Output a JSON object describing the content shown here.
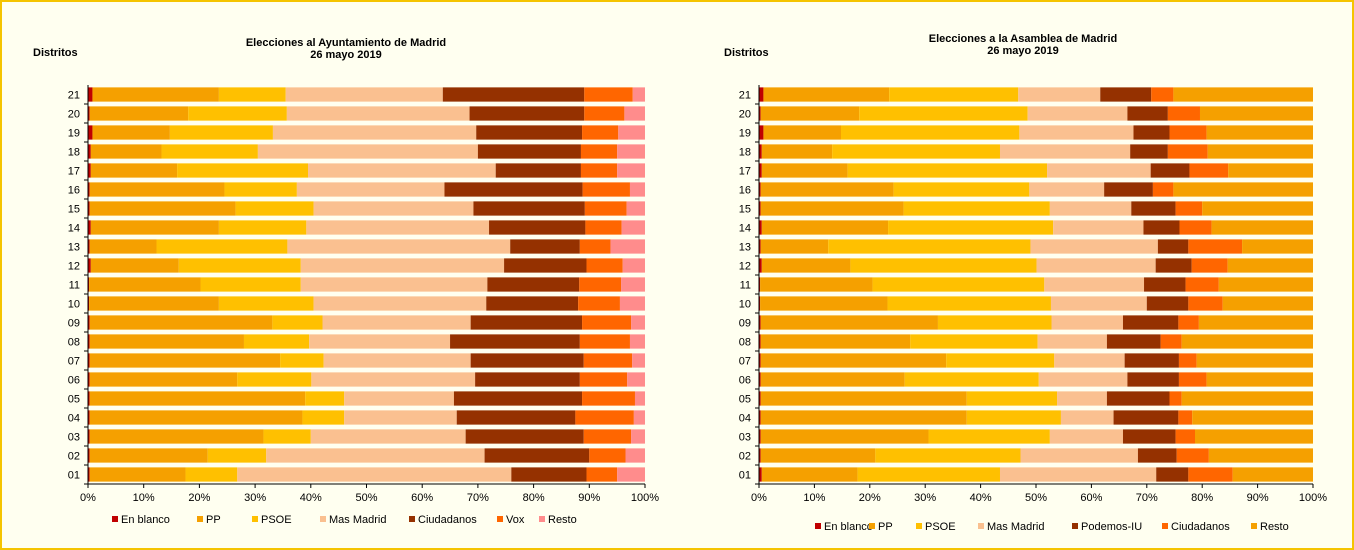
{
  "chart_data": [
    {
      "type": "bar",
      "stacked": true,
      "orientation": "horizontal",
      "normalized": true,
      "title": "Elecciones al Ayuntamiento de Madrid",
      "subtitle": "26 mayo 2019",
      "ylabel": "Distritos",
      "xlim": [
        0,
        100
      ],
      "x_ticks": [
        "0%",
        "10%",
        "20%",
        "30%",
        "40%",
        "50%",
        "60%",
        "70%",
        "80%",
        "90%",
        "100%"
      ],
      "legend_position": "bottom",
      "categories": [
        "01",
        "02",
        "03",
        "04",
        "05",
        "06",
        "07",
        "08",
        "09",
        "10",
        "11",
        "12",
        "13",
        "14",
        "15",
        "16",
        "17",
        "18",
        "19",
        "20",
        "21"
      ],
      "series": [
        {
          "name": "En blanco",
          "color": "#c00000",
          "values": [
            0.3,
            0.3,
            0.3,
            0.3,
            0.3,
            0.3,
            0.3,
            0.3,
            0.3,
            0.2,
            0.2,
            0.5,
            0.3,
            0.5,
            0.3,
            0.3,
            0.5,
            0.5,
            0.8,
            0.3,
            0.8
          ]
        },
        {
          "name": "PP",
          "color": "#f5a000",
          "values": [
            17.2,
            21.2,
            31.2,
            38.2,
            38.7,
            26.5,
            34.2,
            27.7,
            32.8,
            23.3,
            20.0,
            15.8,
            12.0,
            23.0,
            26.2,
            24.2,
            15.5,
            12.7,
            13.9,
            17.7,
            22.7
          ]
        },
        {
          "name": "PSOE",
          "color": "#ffc000",
          "values": [
            9.3,
            10.5,
            8.5,
            7.5,
            7.0,
            13.3,
            7.8,
            11.7,
            9.0,
            17.0,
            18.0,
            21.9,
            23.5,
            15.7,
            14.0,
            13.0,
            23.5,
            17.3,
            18.5,
            17.7,
            12.0
          ]
        },
        {
          "name": "Mas Madrid",
          "color": "#fac090",
          "values": [
            49.2,
            39.2,
            27.8,
            20.2,
            19.7,
            29.4,
            26.4,
            25.3,
            26.6,
            31.0,
            33.5,
            36.5,
            40.0,
            32.8,
            28.7,
            26.5,
            33.7,
            39.5,
            36.5,
            32.8,
            28.2
          ]
        },
        {
          "name": "Ciudadanos",
          "color": "#953100",
          "values": [
            13.5,
            18.8,
            21.2,
            21.3,
            23.0,
            18.8,
            20.3,
            23.3,
            20.0,
            16.5,
            16.5,
            14.8,
            12.5,
            17.3,
            20.0,
            24.8,
            15.3,
            18.5,
            19.0,
            20.6,
            25.4
          ]
        },
        {
          "name": "Vox",
          "color": "#ff6600",
          "values": [
            5.5,
            6.5,
            8.5,
            10.5,
            9.5,
            8.5,
            8.7,
            9.0,
            8.8,
            7.5,
            7.5,
            6.5,
            5.5,
            6.5,
            7.5,
            8.5,
            6.5,
            6.5,
            6.5,
            7.2,
            8.7
          ]
        },
        {
          "name": "Resto",
          "color": "#ff8c8c",
          "values": [
            5.0,
            3.5,
            2.5,
            2.0,
            1.8,
            3.2,
            2.3,
            2.7,
            2.5,
            4.5,
            4.3,
            4.0,
            6.2,
            4.2,
            3.3,
            2.7,
            5.0,
            5.0,
            4.8,
            3.7,
            2.2
          ]
        }
      ]
    },
    {
      "type": "bar",
      "stacked": true,
      "orientation": "horizontal",
      "normalized": true,
      "title": "Elecciones a la Asamblea de Madrid",
      "subtitle": "26 mayo 2019",
      "ylabel": "Distritos",
      "xlim": [
        0,
        100
      ],
      "x_ticks": [
        "0%",
        "10%",
        "20%",
        "30%",
        "40%",
        "50%",
        "60%",
        "70%",
        "80%",
        "90%",
        "100%"
      ],
      "legend_position": "bottom",
      "categories": [
        "01",
        "02",
        "03",
        "04",
        "05",
        "06",
        "07",
        "08",
        "09",
        "10",
        "11",
        "12",
        "13",
        "14",
        "15",
        "16",
        "17",
        "18",
        "19",
        "20",
        "21"
      ],
      "series": [
        {
          "name": "En blanco",
          "color": "#c00000",
          "values": [
            0.5,
            0.3,
            0.3,
            0.3,
            0.3,
            0.3,
            0.3,
            0.3,
            0.3,
            0.2,
            0.2,
            0.5,
            0.3,
            0.5,
            0.3,
            0.3,
            0.5,
            0.5,
            0.8,
            0.3,
            0.8
          ]
        },
        {
          "name": "PP",
          "color": "#f5a000",
          "values": [
            17.3,
            20.7,
            30.3,
            37.2,
            37.2,
            26.0,
            33.5,
            27.0,
            32.0,
            23.0,
            20.3,
            16.0,
            12.2,
            22.8,
            25.8,
            24.0,
            15.5,
            12.7,
            14.0,
            17.8,
            22.7
          ]
        },
        {
          "name": "PSOE",
          "color": "#ffc000",
          "values": [
            25.7,
            26.2,
            21.9,
            17.0,
            16.3,
            24.2,
            19.5,
            23.0,
            20.5,
            29.5,
            31.0,
            33.6,
            36.5,
            29.8,
            26.4,
            24.5,
            36.0,
            30.3,
            32.2,
            30.4,
            23.3
          ]
        },
        {
          "name": "Mas Madrid",
          "color": "#fac090",
          "values": [
            28.2,
            21.2,
            13.2,
            9.5,
            9.0,
            16.0,
            12.7,
            12.5,
            12.9,
            17.3,
            18.0,
            21.5,
            23.0,
            16.3,
            14.7,
            13.5,
            18.7,
            23.5,
            20.6,
            18.0,
            14.8
          ]
        },
        {
          "name": "Podemos-IU",
          "color": "#953100",
          "values": [
            5.8,
            7.0,
            9.5,
            11.7,
            11.3,
            9.3,
            9.8,
            9.7,
            10.0,
            7.5,
            7.5,
            6.5,
            5.5,
            6.5,
            8.0,
            8.8,
            7.0,
            6.8,
            6.5,
            7.3,
            9.2
          ]
        },
        {
          "name": "Ciudadanos",
          "color": "#ff6600",
          "values": [
            8.0,
            5.8,
            3.5,
            2.5,
            2.2,
            5.0,
            3.2,
            3.8,
            3.7,
            6.2,
            6.0,
            6.5,
            9.7,
            5.8,
            4.8,
            3.7,
            7.0,
            7.2,
            6.7,
            5.8,
            4.0
          ]
        },
        {
          "name": "Resto",
          "color": "#f5a000",
          "values": [
            14.5,
            18.8,
            21.3,
            21.8,
            23.7,
            19.2,
            21.0,
            23.7,
            20.6,
            16.3,
            17.0,
            15.4,
            12.8,
            18.3,
            20.0,
            25.2,
            15.3,
            19.0,
            19.2,
            20.4,
            25.2
          ]
        }
      ]
    }
  ]
}
